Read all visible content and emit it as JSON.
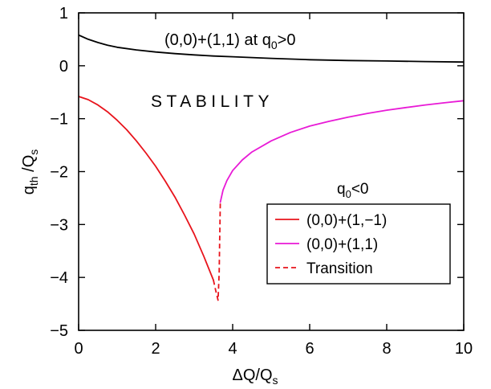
{
  "chart_data": {
    "type": "line",
    "title": "",
    "xlabel": {
      "main": "ΔQ/Q",
      "sub": "s"
    },
    "ylabel": {
      "main": "q",
      "sub1": "th",
      "mid": " /Q",
      "sub2": "s"
    },
    "xlim": [
      0,
      10
    ],
    "ylim": [
      -5,
      1
    ],
    "x_ticks": [
      0,
      2,
      4,
      6,
      8,
      10
    ],
    "y_ticks": [
      1,
      0,
      -1,
      -2,
      -3,
      -4,
      -5
    ],
    "y_tick_labels": [
      "1",
      "0",
      "−1",
      "−2",
      "−3",
      "−4",
      "−5"
    ],
    "grid": false,
    "annotations": {
      "stability": "STABILITY",
      "positive_case": {
        "pre": "(0,0)+(1,1) at q",
        "sub": "0",
        "post": ">0"
      },
      "legend_title": {
        "pre": "q",
        "sub": "0",
        "post": "<0"
      }
    },
    "legend": {
      "placement": "right",
      "entries": [
        {
          "label": "(0,0)+(1,−1)",
          "color": "#e8141c",
          "dash": "solid"
        },
        {
          "label": "(0,0)+(1,1)",
          "color": "#e81ad6",
          "dash": "solid"
        },
        {
          "label": "Transition",
          "color": "#e8141c",
          "dash": "dashed"
        }
      ]
    },
    "series": [
      {
        "key": "positive",
        "color": "#000000",
        "dash": "solid",
        "x": [
          0,
          0.25,
          0.5,
          0.75,
          1,
          1.5,
          2,
          2.5,
          3,
          3.5,
          4,
          4.5,
          5,
          6,
          7,
          8,
          9,
          10
        ],
        "y": [
          0.58,
          0.5,
          0.44,
          0.39,
          0.35,
          0.3,
          0.26,
          0.23,
          0.205,
          0.185,
          0.17,
          0.155,
          0.14,
          0.115,
          0.1,
          0.09,
          0.08,
          0.07
        ]
      },
      {
        "key": "minus",
        "color": "#e8141c",
        "dash": "solid",
        "x": [
          0,
          0.25,
          0.5,
          0.75,
          1,
          1.25,
          1.5,
          1.75,
          2,
          2.25,
          2.5,
          2.75,
          3,
          3.25,
          3.5
        ],
        "y": [
          -0.58,
          -0.64,
          -0.74,
          -0.87,
          -1.03,
          -1.21,
          -1.42,
          -1.65,
          -1.9,
          -2.18,
          -2.48,
          -2.82,
          -3.18,
          -3.6,
          -4.05
        ]
      },
      {
        "key": "transition",
        "color": "#e8141c",
        "dash": "dashed",
        "x": [
          3.5,
          3.56,
          3.62,
          3.65,
          3.66,
          3.67,
          3.68
        ],
        "y": [
          -4.05,
          -4.25,
          -4.43,
          -3.9,
          -3.4,
          -2.95,
          -2.58
        ]
      },
      {
        "key": "plus",
        "color": "#e81ad6",
        "dash": "solid",
        "x": [
          3.68,
          3.75,
          3.85,
          4,
          4.25,
          4.5,
          5,
          5.5,
          6,
          6.5,
          7,
          7.5,
          8,
          8.5,
          9,
          9.5,
          10
        ],
        "y": [
          -2.58,
          -2.35,
          -2.17,
          -1.98,
          -1.78,
          -1.63,
          -1.42,
          -1.26,
          -1.14,
          -1.05,
          -0.97,
          -0.9,
          -0.84,
          -0.79,
          -0.74,
          -0.7,
          -0.66
        ]
      }
    ]
  }
}
